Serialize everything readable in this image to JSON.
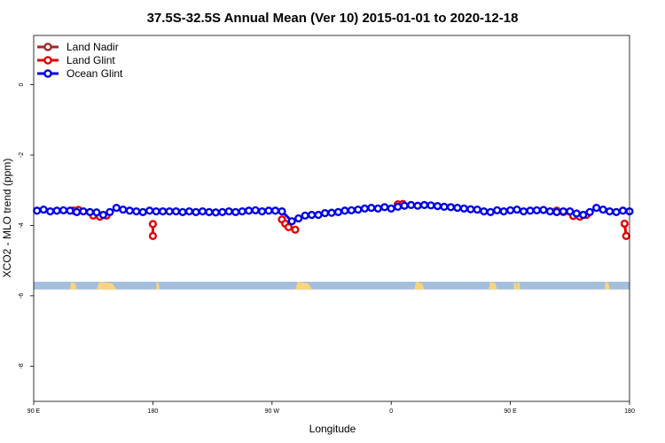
{
  "chart_data": {
    "type": "line",
    "title": "37.5S-32.5S Annual Mean (Ver 10)   2015-01-01 to 2020-12-18",
    "xlabel": "Longitude",
    "ylabel": "XCO2 - MLO trend (ppm)",
    "xlim": [
      -90,
      270
    ],
    "ylim": [
      -9,
      1.4
    ],
    "x_ticks": [
      {
        "value": -90,
        "label": "90 E"
      },
      {
        "value": -18,
        "label": "180"
      },
      {
        "value": 54,
        "label": "90 W"
      },
      {
        "value": 126,
        "label": "0"
      },
      {
        "value": 198,
        "label": "90 E"
      },
      {
        "value": 270,
        "label": "180"
      }
    ],
    "y_ticks": [
      {
        "value": 0,
        "label": "0"
      },
      {
        "value": -2,
        "label": "-2"
      },
      {
        "value": -4,
        "label": "-4"
      },
      {
        "value": -6,
        "label": "-6"
      },
      {
        "value": -8,
        "label": "-8"
      }
    ],
    "land_band": {
      "ymin": -5.82,
      "ymax": -5.6,
      "ocean_color": "#a4bedd",
      "land_color": "#f8d57e",
      "land_x": [
        [
          -68,
          -64
        ],
        [
          -52,
          -40
        ],
        [
          -16,
          -14
        ],
        [
          68,
          78
        ],
        [
          140,
          146
        ],
        [
          185,
          190
        ],
        [
          200,
          202
        ],
        [
          202,
          204
        ],
        [
          255,
          258
        ]
      ]
    },
    "legend": {
      "position": "top-left"
    },
    "series": [
      {
        "name": "Land Nadir",
        "color": "#a0282a",
        "x": [
          -66,
          -63
        ],
        "y": [
          -3.58,
          -3.56
        ]
      },
      {
        "name": "Land Glint",
        "color": "#e30000",
        "x": [
          -66,
          -63,
          -54,
          -50,
          -46,
          -18,
          -18,
          60,
          62,
          64,
          68,
          130,
          133,
          226,
          230,
          236,
          240,
          244,
          267,
          268
        ],
        "y": [
          -3.58,
          -3.56,
          -3.72,
          -3.75,
          -3.72,
          -3.96,
          -4.3,
          -3.83,
          -3.95,
          -4.05,
          -4.12,
          -3.4,
          -3.39,
          -3.58,
          -3.62,
          -3.73,
          -3.75,
          -3.7,
          -3.95,
          -4.3
        ]
      },
      {
        "name": "Ocean Glint",
        "color": "#0000e6",
        "x": [
          -88,
          -84,
          -80,
          -76,
          -72,
          -68,
          -64,
          -60,
          -56,
          -52,
          -48,
          -44,
          -40,
          -36,
          -32,
          -28,
          -24,
          -20,
          -16,
          -12,
          -8,
          -4,
          0,
          4,
          8,
          12,
          16,
          20,
          24,
          28,
          32,
          36,
          40,
          44,
          48,
          52,
          56,
          60,
          66,
          70,
          74,
          78,
          82,
          86,
          90,
          94,
          98,
          102,
          106,
          110,
          114,
          118,
          122,
          126,
          130,
          134,
          138,
          142,
          146,
          150,
          154,
          158,
          162,
          166,
          170,
          174,
          178,
          182,
          186,
          190,
          194,
          198,
          202,
          206,
          210,
          214,
          218,
          222,
          226,
          230,
          234,
          238,
          242,
          246,
          250,
          254,
          258,
          262,
          266,
          270
        ],
        "y": [
          -3.58,
          -3.55,
          -3.6,
          -3.58,
          -3.57,
          -3.58,
          -3.62,
          -3.6,
          -3.62,
          -3.63,
          -3.7,
          -3.62,
          -3.5,
          -3.55,
          -3.58,
          -3.6,
          -3.62,
          -3.58,
          -3.6,
          -3.6,
          -3.6,
          -3.6,
          -3.62,
          -3.6,
          -3.62,
          -3.6,
          -3.62,
          -3.63,
          -3.62,
          -3.6,
          -3.62,
          -3.6,
          -3.58,
          -3.57,
          -3.6,
          -3.58,
          -3.58,
          -3.6,
          -3.88,
          -3.8,
          -3.72,
          -3.7,
          -3.7,
          -3.65,
          -3.64,
          -3.62,
          -3.58,
          -3.57,
          -3.55,
          -3.52,
          -3.5,
          -3.52,
          -3.48,
          -3.52,
          -3.47,
          -3.44,
          -3.42,
          -3.44,
          -3.42,
          -3.43,
          -3.45,
          -3.47,
          -3.48,
          -3.5,
          -3.52,
          -3.54,
          -3.55,
          -3.6,
          -3.62,
          -3.57,
          -3.6,
          -3.57,
          -3.55,
          -3.6,
          -3.58,
          -3.57,
          -3.56,
          -3.6,
          -3.62,
          -3.6,
          -3.6,
          -3.66,
          -3.7,
          -3.62,
          -3.5,
          -3.55,
          -3.6,
          -3.62,
          -3.58,
          -3.6
        ]
      }
    ]
  }
}
